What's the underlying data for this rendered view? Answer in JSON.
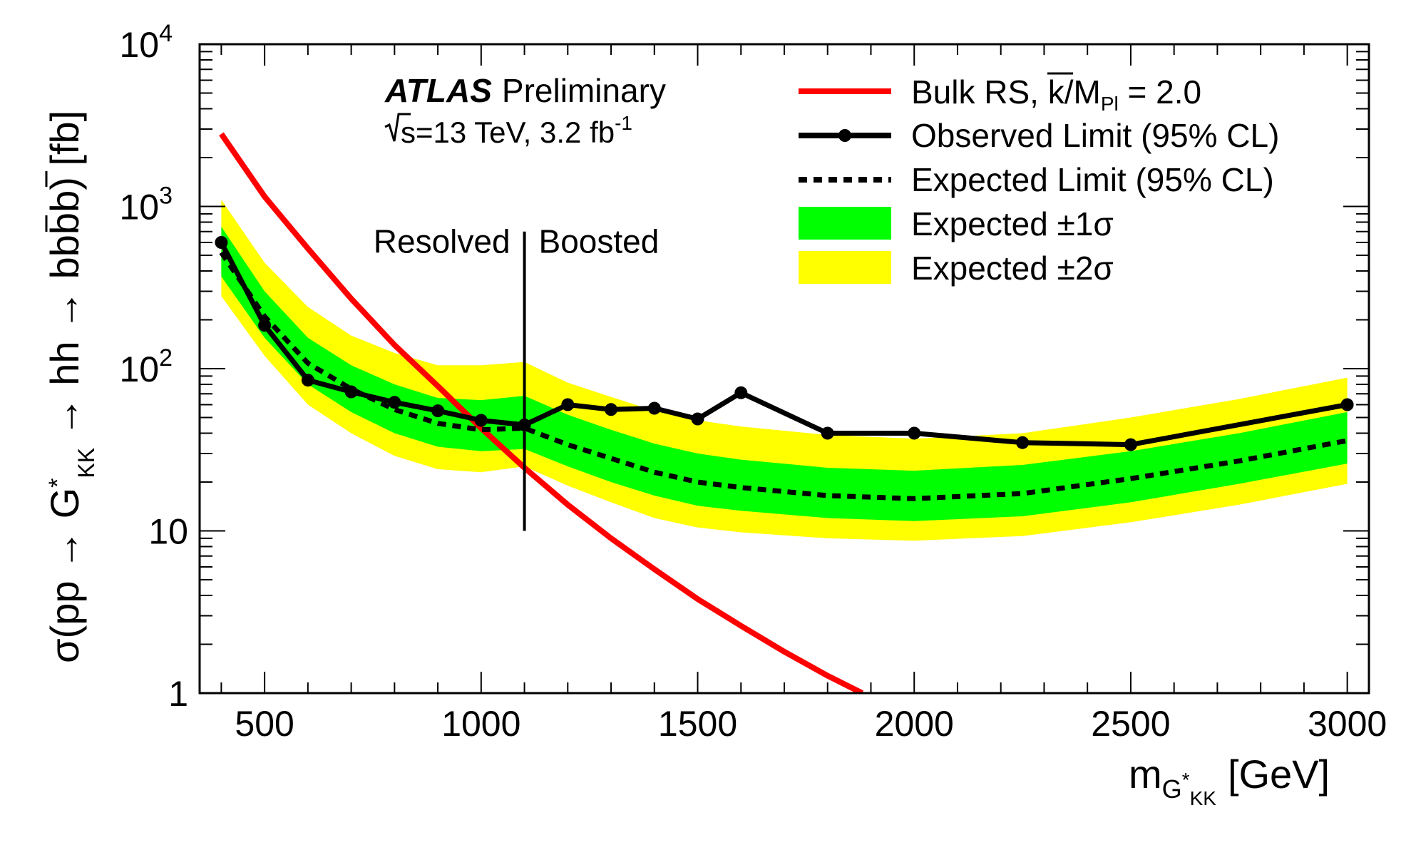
{
  "chart_data": {
    "type": "line",
    "experiment": "ATLAS",
    "status": "Preliminary",
    "energy_prefix": "s",
    "energy_text": "=13 TeV, 3.2 fb",
    "energy_sup": "-1",
    "xlabel_main": "m",
    "xlabel_sub": "G",
    "xlabel_sub2": "KK",
    "xlabel_unit": "[GeV]",
    "ylabel_left": "σ(pp → G",
    "ylabel_kk": "KK",
    "ylabel_right": " → hh → bbbb) [fb]",
    "x_ticks": [
      500,
      1000,
      1500,
      2000,
      2500,
      3000
    ],
    "y_ticks": [
      {
        "value": 1,
        "base": "1",
        "exp": ""
      },
      {
        "value": 10,
        "base": "10",
        "exp": ""
      },
      {
        "value": 100,
        "base": "10",
        "exp": "2"
      },
      {
        "value": 1000,
        "base": "10",
        "exp": "3"
      },
      {
        "value": 10000,
        "base": "10",
        "exp": "4"
      }
    ],
    "xlim": [
      350,
      3050
    ],
    "ylim": [
      1,
      10000
    ],
    "yscale": "log",
    "region_labels": {
      "left": "Resolved",
      "right": "Boosted",
      "divider_x": 1100,
      "divider_y": [
        10,
        700
      ]
    },
    "legend": [
      {
        "key": "bulk",
        "label": "Bulk RS, k/M",
        "label_sub": "Pl",
        "label_tail": " = 2.0"
      },
      {
        "key": "observed",
        "label": "Observed Limit (95% CL)"
      },
      {
        "key": "expected",
        "label": "Expected Limit (95% CL)"
      },
      {
        "key": "band1",
        "label": "Expected ±1σ"
      },
      {
        "key": "band2",
        "label": "Expected ±2σ"
      }
    ],
    "colors": {
      "bulk": "#ff0000",
      "observed": "#000000",
      "expected": "#000000",
      "band1": "#00ff00",
      "band2": "#ffff00"
    },
    "series": [
      {
        "key": "bulk",
        "x": [
          400,
          500,
          600,
          700,
          800,
          900,
          1000,
          1100,
          1200,
          1300,
          1400,
          1500,
          1600,
          1700,
          1800,
          1880
        ],
        "y": [
          2800,
          1150,
          550,
          270,
          140,
          78,
          43,
          24.5,
          14.5,
          9,
          5.8,
          3.8,
          2.6,
          1.8,
          1.28,
          1.0
        ]
      },
      {
        "key": "observed",
        "x": [
          400,
          500,
          600,
          700,
          800,
          900,
          1000,
          1100,
          1200,
          1300,
          1400,
          1500,
          1600,
          1800,
          2000,
          2250,
          2500,
          3000
        ],
        "y": [
          600,
          185,
          85,
          72,
          62,
          55,
          48,
          45,
          60,
          56,
          57,
          49,
          71,
          40,
          40,
          35,
          34,
          60
        ]
      },
      {
        "key": "expected",
        "x": [
          400,
          500,
          600,
          700,
          800,
          900,
          1000,
          1100,
          1200,
          1300,
          1400,
          1500,
          1600,
          1800,
          2000,
          2250,
          2500,
          2750,
          3000
        ],
        "y": [
          520,
          210,
          108,
          75,
          56,
          46,
          42,
          43,
          34,
          28,
          23,
          20,
          18.5,
          16.5,
          15.8,
          17,
          21,
          27,
          36
        ]
      }
    ],
    "bands": [
      {
        "key": "band2",
        "x": [
          400,
          500,
          600,
          700,
          800,
          900,
          1000,
          1100,
          1200,
          1300,
          1400,
          1500,
          1600,
          1800,
          2000,
          2250,
          2500,
          2750,
          3000
        ],
        "lo": [
          280,
          120,
          60,
          40,
          29,
          24,
          23,
          25,
          19,
          15,
          12,
          10.5,
          9.8,
          9,
          8.7,
          9.3,
          11.3,
          14.5,
          19.5
        ],
        "hi": [
          1100,
          450,
          240,
          160,
          125,
          105,
          105,
          110,
          82,
          67,
          55,
          48,
          44,
          39,
          37,
          40,
          50,
          65,
          88
        ]
      },
      {
        "key": "band1",
        "x": [
          400,
          500,
          600,
          700,
          800,
          900,
          1000,
          1100,
          1200,
          1300,
          1400,
          1500,
          1600,
          1800,
          2000,
          2250,
          2500,
          2750,
          3000
        ],
        "lo": [
          370,
          155,
          80,
          54,
          40,
          33,
          31,
          32,
          25,
          20,
          16.5,
          14.3,
          13.3,
          12,
          11.5,
          12.3,
          15,
          19.5,
          26
        ],
        "hi": [
          750,
          300,
          155,
          105,
          80,
          66,
          64,
          68,
          52,
          42,
          34.5,
          30,
          27.5,
          24.5,
          23.5,
          25.5,
          31,
          40,
          54
        ]
      }
    ]
  }
}
